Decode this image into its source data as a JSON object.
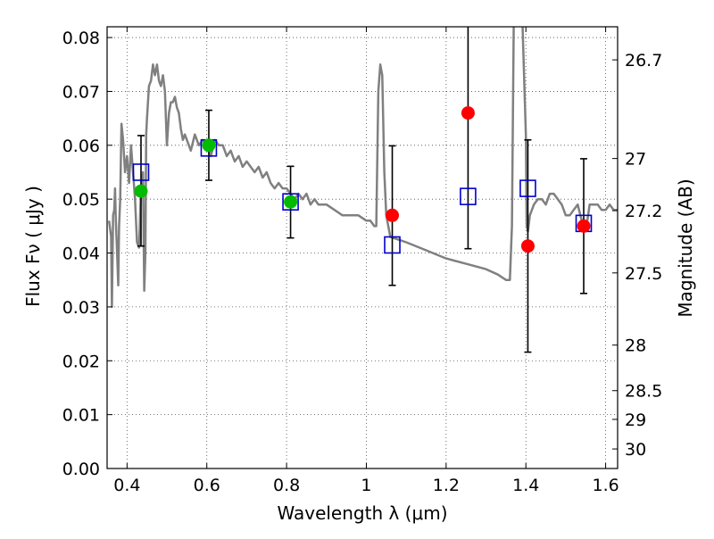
{
  "chart_data": {
    "type": "scatter",
    "title": "",
    "xlabel": "Wavelength  λ (μm)",
    "ylabel": "Flux  Fν  ( μJy )",
    "y2label": "Magnitude (AB)",
    "xlim": [
      0.35,
      1.63
    ],
    "ylim": [
      0.0,
      0.082
    ],
    "x_ticks": [
      0.4,
      0.6,
      0.8,
      1.0,
      1.2,
      1.4,
      1.6
    ],
    "x_tick_labels": [
      "0.4",
      "0.6",
      "0.8",
      "1",
      "1.2",
      "1.4",
      "1.6"
    ],
    "y_ticks": [
      0.0,
      0.01,
      0.02,
      0.03,
      0.04,
      0.05,
      0.06,
      0.07,
      0.08
    ],
    "y_tick_labels": [
      "0.00",
      "0.01",
      "0.02",
      "0.03",
      "0.04",
      "0.05",
      "0.06",
      "0.07",
      "0.08"
    ],
    "y2_ticks": [
      {
        "label": "26.7",
        "mag": 26.7
      },
      {
        "label": "27",
        "mag": 27.0
      },
      {
        "label": "27.2",
        "mag": 27.2
      },
      {
        "label": "27.5",
        "mag": 27.5
      },
      {
        "label": "28",
        "mag": 28.0
      },
      {
        "label": "28.5",
        "mag": 28.5
      },
      {
        "label": "29",
        "mag": 29.0
      },
      {
        "label": "30",
        "mag": 30.0
      }
    ],
    "grid": true,
    "colors": {
      "model": "#808080",
      "observed_detection": "#00bb00",
      "observed_nondetection": "#ff0000",
      "model_flux": "#0000cc",
      "errorbar": "#000000"
    },
    "series": [
      {
        "type": "line",
        "color": "#808080",
        "x": [
          0.355,
          0.36,
          0.362,
          0.365,
          0.368,
          0.37,
          0.372,
          0.375,
          0.378,
          0.38,
          0.383,
          0.386,
          0.39,
          0.395,
          0.4,
          0.405,
          0.41,
          0.42,
          0.425,
          0.43,
          0.435,
          0.44,
          0.443,
          0.446,
          0.448,
          0.45,
          0.455,
          0.46,
          0.465,
          0.47,
          0.475,
          0.48,
          0.485,
          0.49,
          0.495,
          0.5,
          0.505,
          0.51,
          0.515,
          0.52,
          0.525,
          0.53,
          0.535,
          0.54,
          0.545,
          0.55,
          0.56,
          0.57,
          0.58,
          0.59,
          0.6,
          0.61,
          0.62,
          0.63,
          0.64,
          0.65,
          0.66,
          0.67,
          0.68,
          0.69,
          0.7,
          0.71,
          0.72,
          0.73,
          0.74,
          0.75,
          0.76,
          0.77,
          0.78,
          0.79,
          0.8,
          0.81,
          0.82,
          0.83,
          0.84,
          0.85,
          0.86,
          0.87,
          0.88,
          0.9,
          0.92,
          0.94,
          0.96,
          0.98,
          1.0,
          1.01,
          1.02,
          1.025,
          1.03,
          1.035,
          1.04,
          1.045,
          1.05,
          1.06,
          1.08,
          1.1,
          1.15,
          1.2,
          1.25,
          1.3,
          1.33,
          1.35,
          1.36,
          1.365,
          1.37,
          1.375,
          1.385,
          1.39,
          1.4,
          1.402,
          1.405,
          1.41,
          1.42,
          1.43,
          1.44,
          1.45,
          1.46,
          1.47,
          1.48,
          1.49,
          1.5,
          1.51,
          1.52,
          1.53,
          1.54,
          1.55,
          1.56,
          1.57,
          1.58,
          1.59,
          1.6,
          1.61,
          1.62,
          1.63
        ],
        "y": [
          0.046,
          0.043,
          0.03,
          0.047,
          0.048,
          0.052,
          0.046,
          0.04,
          0.034,
          0.045,
          0.05,
          0.064,
          0.061,
          0.055,
          0.058,
          0.053,
          0.06,
          0.05,
          0.042,
          0.041,
          0.052,
          0.055,
          0.033,
          0.04,
          0.062,
          0.065,
          0.071,
          0.072,
          0.075,
          0.073,
          0.075,
          0.072,
          0.071,
          0.073,
          0.07,
          0.06,
          0.066,
          0.068,
          0.068,
          0.069,
          0.067,
          0.066,
          0.063,
          0.061,
          0.062,
          0.061,
          0.059,
          0.062,
          0.06,
          0.061,
          0.06,
          0.058,
          0.061,
          0.06,
          0.06,
          0.058,
          0.059,
          0.057,
          0.058,
          0.056,
          0.057,
          0.056,
          0.055,
          0.056,
          0.054,
          0.055,
          0.053,
          0.052,
          0.053,
          0.052,
          0.052,
          0.051,
          0.05,
          0.051,
          0.05,
          0.051,
          0.049,
          0.05,
          0.049,
          0.049,
          0.048,
          0.047,
          0.047,
          0.047,
          0.046,
          0.046,
          0.045,
          0.045,
          0.07,
          0.075,
          0.073,
          0.055,
          0.047,
          0.043,
          0.0425,
          0.042,
          0.0405,
          0.039,
          0.038,
          0.037,
          0.036,
          0.035,
          0.035,
          0.045,
          0.086,
          0.086,
          0.086,
          0.086,
          0.062,
          0.045,
          0.044,
          0.047,
          0.049,
          0.05,
          0.05,
          0.049,
          0.051,
          0.051,
          0.05,
          0.049,
          0.047,
          0.047,
          0.048,
          0.049,
          0.046,
          0.044,
          0.049,
          0.049,
          0.049,
          0.048,
          0.048,
          0.049,
          0.048,
          0.048
        ]
      },
      {
        "name": "",
        "type": "model_flux_squares",
        "color": "#0000cc",
        "x": [
          0.435,
          0.605,
          0.81,
          1.065,
          1.255,
          1.405,
          1.545
        ],
        "y": [
          0.055,
          0.0595,
          0.0495,
          0.0415,
          0.0505,
          0.052,
          0.0455
        ]
      },
      {
        "type": "observed_points",
        "x": [
          0.435,
          0.605,
          0.81,
          1.065,
          1.255,
          1.405,
          1.545
        ],
        "y": [
          0.0515,
          0.06,
          0.0495,
          0.047,
          0.066,
          0.0413,
          0.045
        ],
        "yerr_low": [
          0.0413,
          0.0535,
          0.0428,
          0.034,
          0.0408,
          0.0216,
          0.0325
        ],
        "yerr_high": [
          0.0618,
          0.0665,
          0.0561,
          0.0599,
          0.086,
          0.061,
          0.0575
        ],
        "colors": [
          "#00bb00",
          "#00bb00",
          "#00bb00",
          "#ff0000",
          "#ff0000",
          "#ff0000",
          "#ff0000"
        ]
      }
    ]
  }
}
